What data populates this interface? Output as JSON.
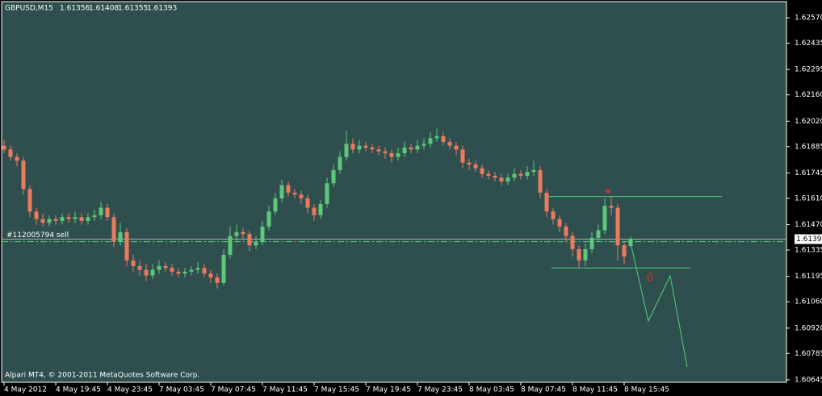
{
  "chart_data": {
    "type": "candlestick",
    "title": "GBPUSD,M15",
    "footer": "Alpari MT4, © 2001-2011 MetaQuotes Software Corp.",
    "up_color": "#5cc878",
    "down_color": "#ec7a5e",
    "level_color": "#4fd07a",
    "open": [
      1.6189,
      1.6187,
      1.6183,
      1.6181,
      1.6166,
      1.6154,
      1.615,
      1.6148,
      1.615,
      1.6149,
      1.6151,
      1.615,
      1.6151,
      1.6149,
      1.6151,
      1.6152,
      1.6156,
      1.6151,
      1.6138,
      1.6143,
      1.6128,
      1.6125,
      1.6123,
      1.612,
      1.6123,
      1.6125,
      1.6124,
      1.6122,
      1.6121,
      1.6122,
      1.6123,
      1.6124,
      1.6121,
      1.6119,
      1.6116,
      1.6131,
      1.6141,
      1.6143,
      1.6142,
      1.6136,
      1.6138,
      1.6146,
      1.6154,
      1.6161,
      1.6168,
      1.6164,
      1.6163,
      1.6161,
      1.6156,
      1.6152,
      1.6158,
      1.6169,
      1.6176,
      1.6183,
      1.619,
      1.6187,
      1.6189,
      1.6188,
      1.6187,
      1.6186,
      1.6185,
      1.6183,
      1.6185,
      1.6188,
      1.6187,
      1.6189,
      1.619,
      1.6193,
      1.6194,
      1.6191,
      1.6189,
      1.6187,
      1.618,
      1.6179,
      1.6177,
      1.6174,
      1.6173,
      1.6172,
      1.617,
      1.6172,
      1.6174,
      1.6173,
      1.6175,
      1.6176,
      1.6164,
      1.6154,
      1.615,
      1.6146,
      1.6141,
      1.6134,
      1.6128,
      1.6134,
      1.614,
      1.6144,
      1.6157,
      1.6156,
      1.6136,
      1.61356
    ],
    "high": [
      1.6192,
      1.6189,
      1.6185,
      1.6183,
      1.6168,
      1.6156,
      1.6153,
      1.6152,
      1.6152,
      1.6153,
      1.6153,
      1.6154,
      1.6153,
      1.6153,
      1.6155,
      1.6159,
      1.6158,
      1.6153,
      1.6148,
      1.6145,
      1.6131,
      1.6128,
      1.6126,
      1.6126,
      1.6128,
      1.6127,
      1.6126,
      1.6124,
      1.6124,
      1.6125,
      1.6127,
      1.6126,
      1.6123,
      1.6121,
      1.6134,
      1.6146,
      1.6147,
      1.6145,
      1.6144,
      1.6141,
      1.6149,
      1.6157,
      1.6164,
      1.6171,
      1.617,
      1.6166,
      1.6165,
      1.6163,
      1.6158,
      1.616,
      1.6172,
      1.6179,
      1.6186,
      1.6197,
      1.6193,
      1.6192,
      1.6191,
      1.619,
      1.6189,
      1.6188,
      1.6187,
      1.6188,
      1.6191,
      1.619,
      1.6192,
      1.6193,
      1.6196,
      1.6198,
      1.6196,
      1.6193,
      1.6191,
      1.6189,
      1.6182,
      1.6181,
      1.6179,
      1.6176,
      1.6175,
      1.6174,
      1.6174,
      1.6177,
      1.6176,
      1.6178,
      1.6181,
      1.6178,
      1.6166,
      1.6156,
      1.6152,
      1.6148,
      1.6143,
      1.6136,
      1.6137,
      1.6143,
      1.6147,
      1.6161,
      1.6162,
      1.6158,
      1.6138,
      1.61408
    ],
    "low": [
      1.6185,
      1.6181,
      1.6178,
      1.6163,
      1.6151,
      1.6147,
      1.6146,
      1.6146,
      1.6147,
      1.6147,
      1.6148,
      1.6148,
      1.6147,
      1.6147,
      1.6149,
      1.615,
      1.6149,
      1.6135,
      1.6136,
      1.6125,
      1.6122,
      1.612,
      1.6117,
      1.6118,
      1.6121,
      1.6122,
      1.612,
      1.6119,
      1.6119,
      1.612,
      1.6121,
      1.6119,
      1.6116,
      1.6113,
      1.6115,
      1.6129,
      1.6138,
      1.6139,
      1.6133,
      1.6134,
      1.6136,
      1.6144,
      1.6152,
      1.6159,
      1.6162,
      1.6161,
      1.6158,
      1.6153,
      1.6149,
      1.615,
      1.6156,
      1.6167,
      1.6174,
      1.6181,
      1.6185,
      1.6185,
      1.6186,
      1.6185,
      1.6184,
      1.6182,
      1.618,
      1.6181,
      1.6183,
      1.6185,
      1.6185,
      1.6187,
      1.6188,
      1.6191,
      1.6189,
      1.6187,
      1.6184,
      1.6177,
      1.6176,
      1.6175,
      1.6172,
      1.6171,
      1.617,
      1.6168,
      1.6168,
      1.617,
      1.6171,
      1.6171,
      1.6173,
      1.6161,
      1.6151,
      1.6147,
      1.6143,
      1.6138,
      1.613,
      1.6124,
      1.6125,
      1.6132,
      1.6138,
      1.6142,
      1.6152,
      1.6128,
      1.6126,
      1.61355
    ],
    "close": [
      1.6187,
      1.6183,
      1.6181,
      1.6166,
      1.6154,
      1.615,
      1.6148,
      1.615,
      1.6149,
      1.6151,
      1.615,
      1.6151,
      1.6149,
      1.6151,
      1.6152,
      1.6156,
      1.6151,
      1.6138,
      1.6143,
      1.6128,
      1.6125,
      1.6123,
      1.612,
      1.6123,
      1.6125,
      1.6124,
      1.6122,
      1.6121,
      1.6122,
      1.6123,
      1.6124,
      1.6121,
      1.6119,
      1.6116,
      1.6131,
      1.6141,
      1.6143,
      1.6142,
      1.6136,
      1.6138,
      1.6146,
      1.6154,
      1.6161,
      1.6168,
      1.6164,
      1.6163,
      1.6161,
      1.6156,
      1.6152,
      1.6158,
      1.6169,
      1.6176,
      1.6183,
      1.619,
      1.6187,
      1.6189,
      1.6188,
      1.6187,
      1.6186,
      1.6185,
      1.6183,
      1.6185,
      1.6188,
      1.6187,
      1.6189,
      1.619,
      1.6193,
      1.6194,
      1.6191,
      1.6189,
      1.6187,
      1.618,
      1.6179,
      1.6177,
      1.6174,
      1.6173,
      1.6172,
      1.617,
      1.6172,
      1.6174,
      1.6173,
      1.6175,
      1.6176,
      1.6164,
      1.6154,
      1.615,
      1.6146,
      1.6141,
      1.6134,
      1.6128,
      1.6134,
      1.614,
      1.6144,
      1.6157,
      1.6156,
      1.6136,
      1.613,
      1.61393
    ],
    "time_labels": [
      "4 May 2012",
      "4 May 19:45",
      "4 May 23:45",
      "7 May 03:45",
      "7 May 07:45",
      "7 May 11:45",
      "7 May 15:45",
      "7 May 19:45",
      "7 May 23:45",
      "8 May 03:45",
      "8 May 07:45",
      "8 May 11:45",
      "8 May 15:45"
    ],
    "ylim": [
      1.60632,
      1.62656
    ],
    "yticks": [
      {
        "value": 1.6257,
        "label": "1.62570"
      },
      {
        "value": 1.62435,
        "label": "1.62435"
      },
      {
        "value": 1.62295,
        "label": "1.62295"
      },
      {
        "value": 1.6216,
        "label": "1.62160"
      },
      {
        "value": 1.6202,
        "label": "1.62020"
      },
      {
        "value": 1.61885,
        "label": "1.61885"
      },
      {
        "value": 1.61745,
        "label": "1.61745"
      },
      {
        "value": 1.6161,
        "label": "1.61610"
      },
      {
        "value": 1.6147,
        "label": "1.61470"
      },
      {
        "value": 1.61335,
        "label": "1.61335"
      },
      {
        "value": 1.61195,
        "label": "1.61195"
      },
      {
        "value": 1.6106,
        "label": "1.61060"
      },
      {
        "value": 1.6092,
        "label": "1.60920"
      },
      {
        "value": 1.60785,
        "label": "1.60785"
      },
      {
        "value": 1.60645,
        "label": "1.60645"
      }
    ],
    "bid": 1.61393,
    "levels": [
      1.6162,
      1.6124
    ],
    "order": {
      "label": "#112005794 sell",
      "price": 1.6138
    }
  }
}
